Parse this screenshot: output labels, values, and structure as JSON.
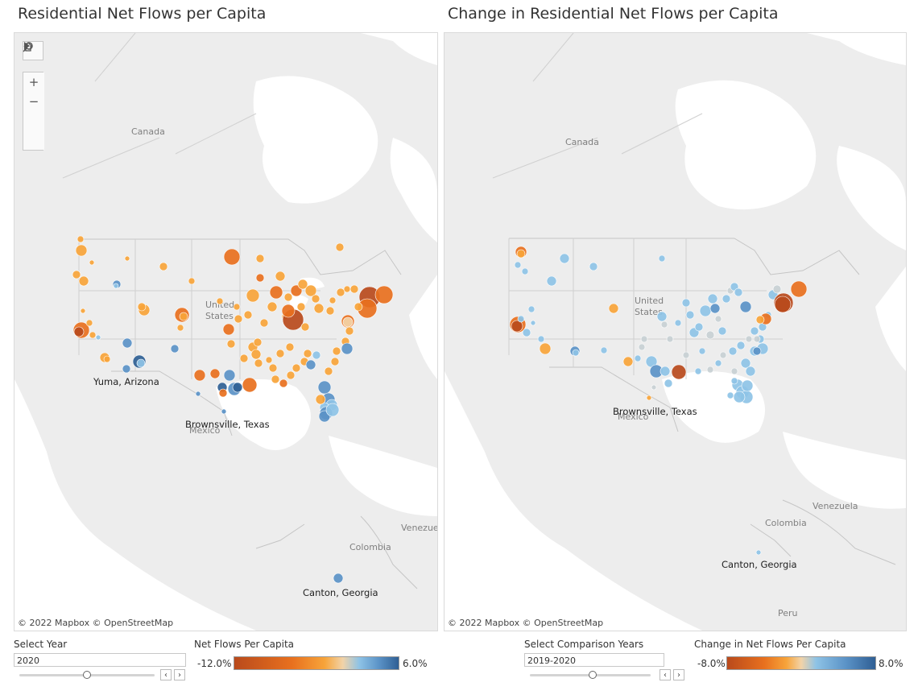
{
  "left_panel": {
    "title": "Residential Net Flows per Capita",
    "labels": {
      "country1": "Canada",
      "country2a": "United",
      "country2b": "States",
      "country3": "Mexico",
      "country4": "Colombia",
      "country5": "Venezue"
    },
    "city_labels": [
      "Yuma, Arizona",
      "Brownsville, Texas",
      "Canton, Georgia"
    ],
    "attribution": "© 2022 Mapbox  © OpenStreetMap",
    "tools": {
      "search": "search-icon",
      "zoom_in": "+",
      "zoom_out": "−",
      "home": "home-icon",
      "expand": "play-icon"
    },
    "filter_label": "Select Year",
    "filter_value": "2020",
    "legend": {
      "title": "Net Flows Per Capita",
      "min": "-12.0%",
      "max": "6.0%"
    }
  },
  "right_panel": {
    "title": "Change in Residential Net Flows per Capita",
    "labels": {
      "country1": "Canada",
      "country2a": "United",
      "country2b": "States",
      "country3": "Mexico",
      "country4": "Colombia",
      "country5": "Venezuela",
      "country6": "Peru"
    },
    "city_labels": [
      "Brownsville, Texas",
      "Canton, Georgia"
    ],
    "attribution": "© 2022 Mapbox  © OpenStreetMap",
    "filter_label": "Select Comparison Years",
    "filter_value": "2019-2020",
    "legend": {
      "title": "Change in Net Flows Per Capita",
      "min": "-8.0%",
      "max": "8.0%"
    }
  },
  "colors": {
    "dark_orange": "#b94a1c",
    "orange": "#e8701e",
    "light_orange": "#f7a43a",
    "pale": "#f2d3a8",
    "light_blue": "#8ec3e6",
    "mid_blue": "#5b93c7",
    "dark_blue": "#2f5f94",
    "map_bg": "#ededed",
    "water": "#ffffff"
  }
}
